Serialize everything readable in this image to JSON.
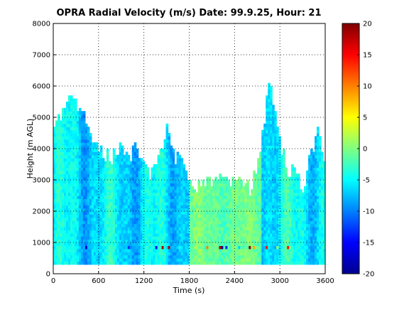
{
  "chart_data": {
    "type": "heatmap",
    "title": "OPRA Radial Velocity (m/s)  Date: 99.9.25, Hour: 21",
    "xlabel": "Time (s)",
    "ylabel": "Height (m AGL)",
    "xlim": [
      0,
      3600
    ],
    "ylim": [
      0,
      8000
    ],
    "x_ticks": [
      "0",
      "600",
      "1200",
      "1800",
      "2400",
      "3000",
      "3600"
    ],
    "y_ticks": [
      "0",
      "1000",
      "2000",
      "3000",
      "4000",
      "5000",
      "6000",
      "7000",
      "8000"
    ],
    "grid": true,
    "colorbar": {
      "min": -20,
      "max": 20,
      "ticks": [
        "20",
        "15",
        "10",
        "5",
        "0",
        "-5",
        "-10",
        "-15",
        "-20"
      ],
      "colormap": "jet",
      "colors": [
        "#00008f",
        "#0000ff",
        "#0080ff",
        "#00ffff",
        "#80ff80",
        "#ffff00",
        "#ff8000",
        "#ff0000",
        "#800000"
      ]
    },
    "data_bottom_m": 300,
    "top_profile": {
      "x": [
        0,
        100,
        200,
        260,
        300,
        400,
        500,
        600,
        800,
        900,
        1000,
        1100,
        1200,
        1300,
        1400,
        1500,
        1600,
        1700,
        1800,
        1900,
        2000,
        2200,
        2400,
        2600,
        2700,
        2800,
        2850,
        2900,
        3000,
        3100,
        3200,
        3300,
        3400,
        3500,
        3600
      ],
      "height_m": [
        4500,
        5000,
        5500,
        5800,
        5300,
        5200,
        4400,
        3800,
        3700,
        4000,
        3500,
        4200,
        3400,
        3100,
        3800,
        4600,
        3700,
        3400,
        2900,
        2700,
        2900,
        3000,
        2900,
        2700,
        3200,
        5000,
        6300,
        5700,
        4200,
        3200,
        3300,
        2700,
        3600,
        4500,
        3600
      ]
    },
    "regions": [
      {
        "x": [
          0,
          1800
        ],
        "mean_velocity": -6,
        "description": "mostly -3 to -9 m/s"
      },
      {
        "x": [
          1800,
          2750
        ],
        "mean_velocity": -1,
        "description": "mostly -2 to 0 m/s"
      },
      {
        "x": [
          2750,
          3600
        ],
        "mean_velocity": -5,
        "description": "mixed -9 to -1 m/s"
      }
    ],
    "low_level_noise_band_m": [
      750,
      900
    ]
  }
}
